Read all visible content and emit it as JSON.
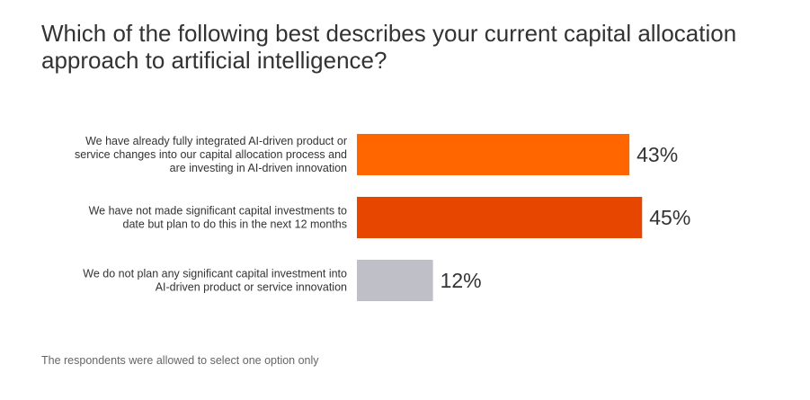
{
  "chart_data": {
    "type": "bar",
    "orientation": "horizontal",
    "title": "Which of the following best describes your current capital allocation approach to artificial intelligence?",
    "categories": [
      [
        "We have already fully integrated AI-driven product or",
        "service changes into our capital allocation process and",
        "are investing in AI-driven innovation"
      ],
      [
        "We have not made significant capital investments to",
        "date but plan to do this in the next 12 months"
      ],
      [
        "We do not plan any significant capital investment into",
        "AI-driven product or service innovation"
      ]
    ],
    "values": [
      43,
      45,
      12
    ],
    "value_labels": [
      "43%",
      "45%",
      "12%"
    ],
    "colors": [
      "#ff6600",
      "#e64600",
      "#bfbfc8"
    ],
    "xlim": [
      0,
      100
    ],
    "grid": false,
    "legend": "none",
    "footnote": "The respondents were allowed to select one option only"
  }
}
